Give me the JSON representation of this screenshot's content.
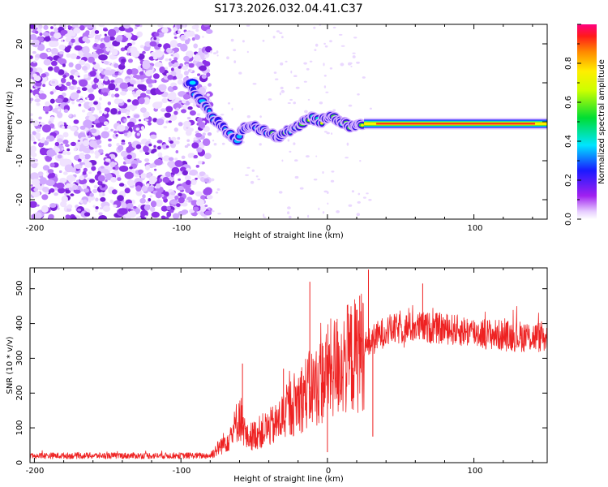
{
  "title": "S173.2026.032.04.41.C37",
  "colors": {
    "snr_line": "#ee2222",
    "band_core": "#ff1a1a"
  },
  "chart_data": [
    {
      "type": "heatmap",
      "name": "spectrogram",
      "xlabel": "Height of straight line (km)",
      "ylabel": "Frequency (Hz)",
      "xlim": [
        -203,
        150
      ],
      "ylim": [
        -25,
        25
      ],
      "x_ticks": [
        "-200",
        "-100",
        "0",
        "100"
      ],
      "y_ticks": [
        "-20",
        "-10",
        "0",
        "10",
        "20"
      ],
      "colorbar": {
        "label": "Normalized spectral amplitude",
        "range": [
          0,
          1
        ],
        "ticks": [
          "0.0",
          "0.2",
          "0.4",
          "0.6",
          "0.8"
        ]
      },
      "noise_region_x": [
        -203,
        -80
      ],
      "ridge": {
        "x": [
          -95,
          -80,
          -75,
          -70,
          -65,
          -62,
          -60,
          -55,
          -50,
          -45,
          -40,
          -35,
          -30,
          -25,
          -20,
          -15,
          -10,
          -5,
          0,
          5,
          10,
          15,
          20,
          30,
          60,
          100,
          150
        ],
        "freq": [
          10,
          2,
          0,
          -2,
          -4,
          -5,
          -3,
          -1,
          -1,
          -2,
          -3,
          -4,
          -3,
          -2,
          -1,
          0,
          1,
          0,
          1,
          1,
          0,
          -1,
          -1,
          -0.5,
          -0.5,
          -0.5,
          -0.5
        ]
      }
    },
    {
      "type": "line",
      "name": "snr",
      "xlabel": "Height of straight line (km)",
      "ylabel": "SNR (10 * v/v)",
      "xlim": [
        -203,
        150
      ],
      "ylim": [
        0,
        560
      ],
      "x_ticks": [
        "-200",
        "-100",
        "0",
        "100"
      ],
      "y_ticks": [
        "0",
        "100",
        "200",
        "300",
        "400",
        "500"
      ],
      "trend": {
        "x": [
          -203,
          -80,
          -75,
          -65,
          -60,
          -55,
          -45,
          -35,
          -25,
          -15,
          -5,
          0,
          10,
          20,
          30,
          40,
          60,
          80,
          100,
          120,
          150
        ],
        "y": [
          20,
          20,
          40,
          80,
          140,
          70,
          90,
          110,
          160,
          200,
          230,
          260,
          290,
          310,
          350,
          380,
          390,
          385,
          375,
          365,
          360
        ]
      },
      "spikes": [
        {
          "x": -58,
          "y": 285
        },
        {
          "x": -30,
          "y": 270
        },
        {
          "x": -12,
          "y": 520
        },
        {
          "x": 0,
          "y": 30
        },
        {
          "x": 22,
          "y": 480
        },
        {
          "x": 28,
          "y": 555
        },
        {
          "x": 31,
          "y": 75
        },
        {
          "x": 65,
          "y": 515
        }
      ]
    }
  ]
}
